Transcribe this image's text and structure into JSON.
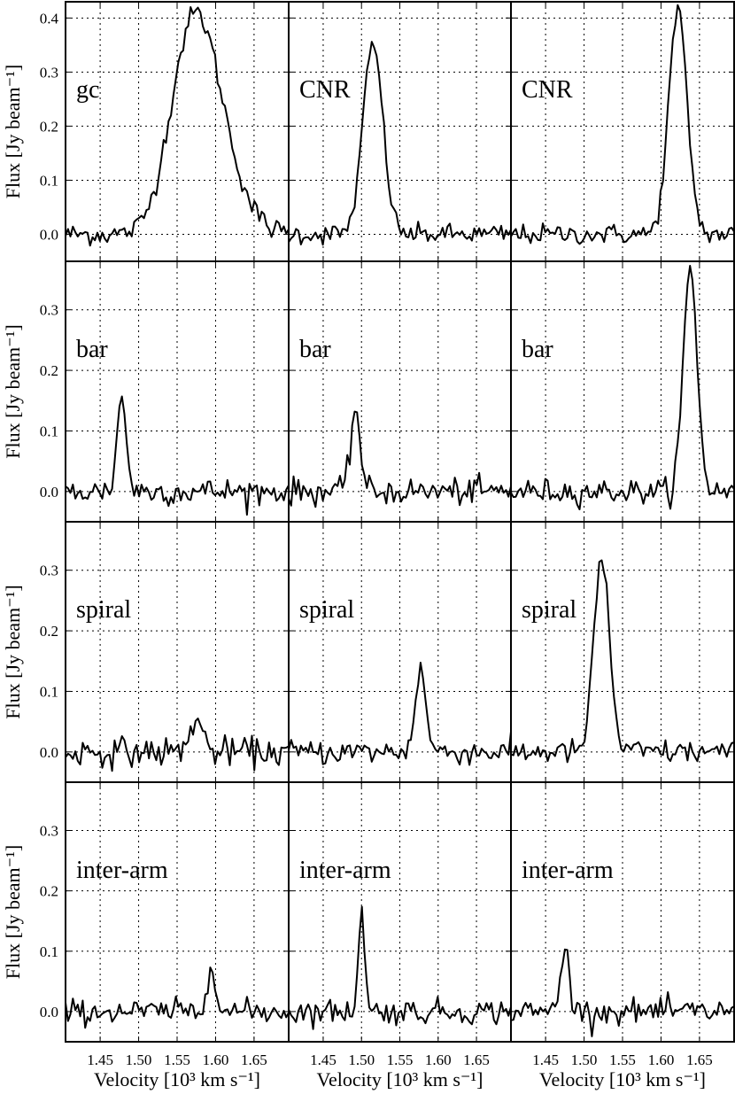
{
  "chart_data": {
    "type": "line",
    "layout": {
      "rows": 4,
      "cols": 3,
      "sharex": true,
      "sharey_per_row": true
    },
    "xlabel": "Velocity [10³ km s⁻¹]",
    "ylabel": "Flux [Jy beam⁻¹]",
    "xlim": [
      1.405,
      1.695
    ],
    "xticks": [
      1.45,
      1.5,
      1.55,
      1.6,
      1.65
    ],
    "xtick_labels": [
      "1.45",
      "1.50",
      "1.55",
      "1.60",
      "1.65"
    ],
    "grid": true,
    "rows": [
      {
        "ylim": [
          -0.05,
          0.43
        ],
        "yticks": [
          0.0,
          0.1,
          0.2,
          0.3,
          0.4
        ],
        "ytick_labels": [
          "0.0",
          "0.1",
          "0.2",
          "0.3",
          "0.4"
        ]
      },
      {
        "ylim": [
          -0.05,
          0.38
        ],
        "yticks": [
          0.0,
          0.1,
          0.2,
          0.3
        ],
        "ytick_labels": [
          "0.0",
          "0.1",
          "0.2",
          "0.3"
        ]
      },
      {
        "ylim": [
          -0.05,
          0.38
        ],
        "yticks": [
          0.0,
          0.1,
          0.2,
          0.3
        ],
        "ytick_labels": [
          "0.0",
          "0.1",
          "0.2",
          "0.3"
        ]
      },
      {
        "ylim": [
          -0.05,
          0.38
        ],
        "yticks": [
          0.0,
          0.1,
          0.2,
          0.3
        ],
        "ytick_labels": [
          "0.0",
          "0.1",
          "0.2",
          "0.3"
        ]
      }
    ],
    "panels": [
      {
        "row": 0,
        "col": 0,
        "label": "gc",
        "profile": {
          "type": "broad",
          "center": 1.575,
          "peak": 0.41,
          "sigma": 0.033,
          "skew": 0.004
        },
        "noise": 0.012
      },
      {
        "row": 0,
        "col": 1,
        "label": "CNR",
        "profile": {
          "type": "gauss",
          "center": 1.515,
          "peak": 0.35,
          "sigma": 0.013
        },
        "noise": 0.011
      },
      {
        "row": 0,
        "col": 2,
        "label": "CNR",
        "profile": {
          "type": "gauss",
          "center": 1.622,
          "peak": 0.41,
          "sigma": 0.012
        },
        "noise": 0.011
      },
      {
        "row": 1,
        "col": 0,
        "label": "bar",
        "profile": {
          "type": "gauss",
          "center": 1.478,
          "peak": 0.155,
          "sigma": 0.006
        },
        "noise": 0.013
      },
      {
        "row": 1,
        "col": 1,
        "label": "bar",
        "profile": {
          "type": "gauss",
          "center": 1.492,
          "peak": 0.14,
          "sigma": 0.006
        },
        "noise": 0.013
      },
      {
        "row": 1,
        "col": 2,
        "label": "bar",
        "profile": {
          "type": "gauss",
          "center": 1.638,
          "peak": 0.365,
          "sigma": 0.009
        },
        "noise": 0.012
      },
      {
        "row": 2,
        "col": 0,
        "label": "spiral",
        "profile": {
          "type": "gauss",
          "center": 1.575,
          "peak": 0.055,
          "sigma": 0.008
        },
        "noise": 0.014
      },
      {
        "row": 2,
        "col": 1,
        "label": "spiral",
        "profile": {
          "type": "gauss",
          "center": 1.577,
          "peak": 0.135,
          "sigma": 0.007
        },
        "noise": 0.012
      },
      {
        "row": 2,
        "col": 2,
        "label": "spiral",
        "profile": {
          "type": "gauss",
          "center": 1.523,
          "peak": 0.32,
          "sigma": 0.01
        },
        "noise": 0.012
      },
      {
        "row": 3,
        "col": 0,
        "label": "inter-arm",
        "profile": {
          "type": "gauss",
          "center": 1.595,
          "peak": 0.09,
          "sigma": 0.005
        },
        "noise": 0.012
      },
      {
        "row": 3,
        "col": 1,
        "label": "inter-arm",
        "profile": {
          "type": "gauss",
          "center": 1.5,
          "peak": 0.175,
          "sigma": 0.004
        },
        "noise": 0.012
      },
      {
        "row": 3,
        "col": 2,
        "label": "inter-arm",
        "profile": {
          "type": "gauss",
          "center": 1.475,
          "peak": 0.1,
          "sigma": 0.006
        },
        "noise": 0.012
      }
    ]
  }
}
